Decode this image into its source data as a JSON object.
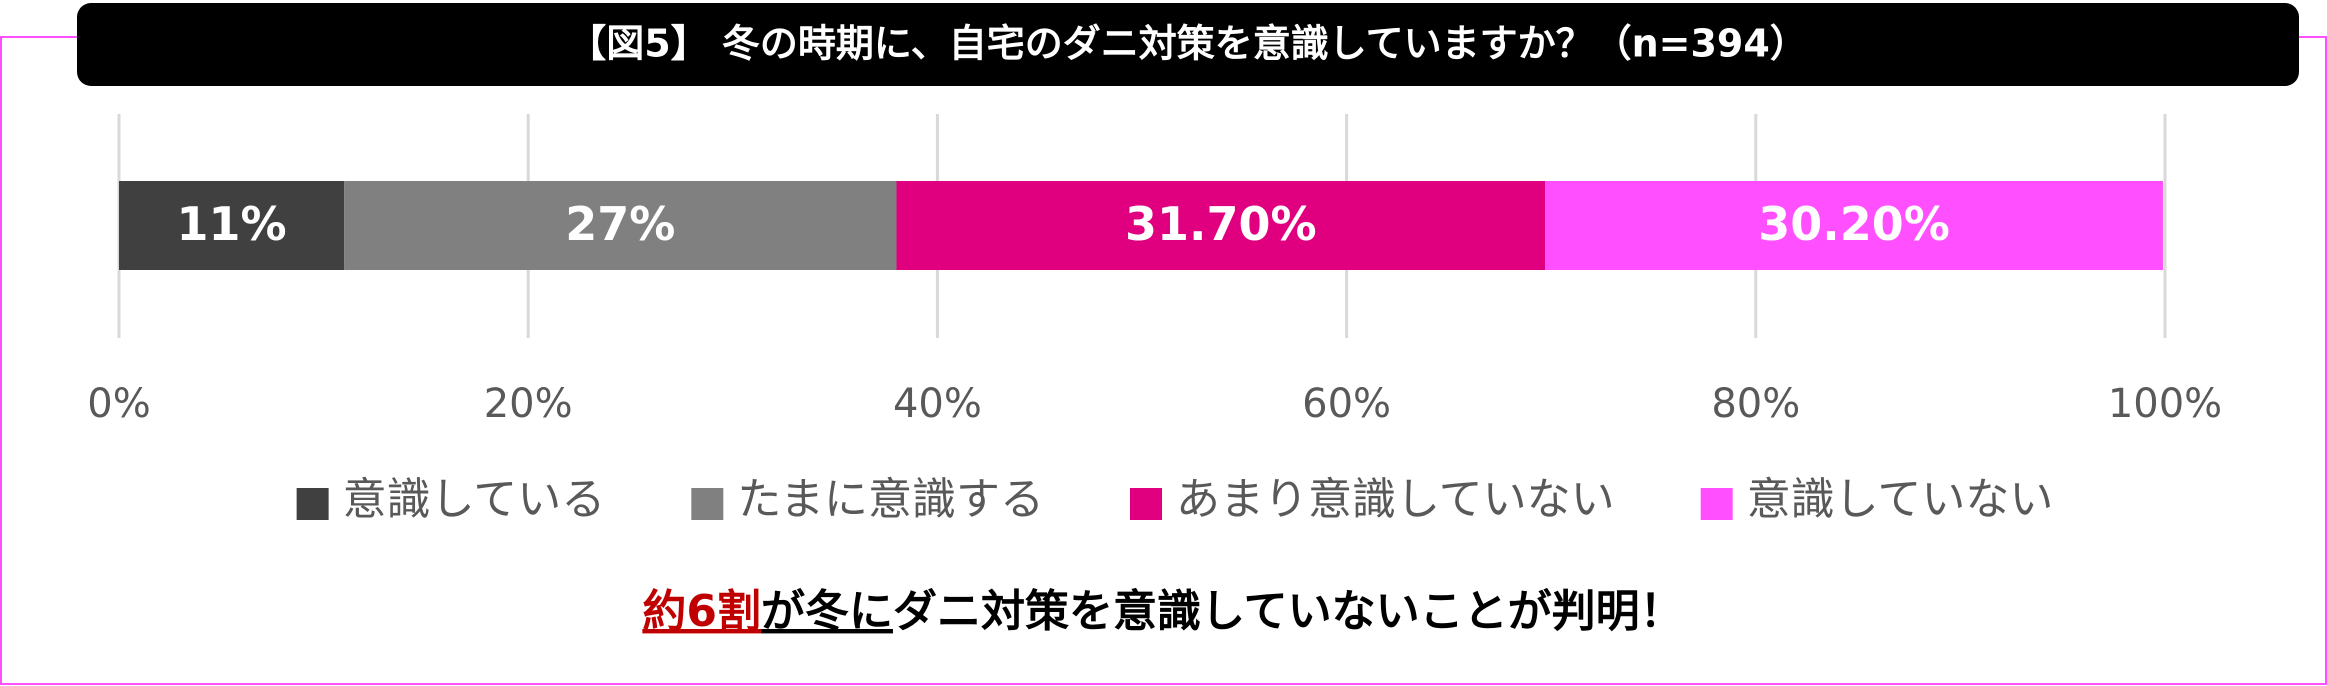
{
  "chart_data": {
    "type": "stacked_bar_100",
    "title": "【図5】 冬の時期に、自宅のダニ対策を意識していますか？（n=394）",
    "categories": [
      null
    ],
    "series": [
      {
        "name": "意識している",
        "color": "#404040",
        "values": [
          11
        ],
        "value_labels": [
          "11%"
        ]
      },
      {
        "name": "たまに意識する",
        "color": "#808080",
        "values": [
          27
        ],
        "value_labels": [
          "27%"
        ]
      },
      {
        "name": "あまり意識していない",
        "color": "#e0007f",
        "values": [
          31.7
        ],
        "value_labels": [
          "31.70%"
        ]
      },
      {
        "name": "意識していない",
        "color": "#ff4fff",
        "values": [
          30.2
        ],
        "value_labels": [
          "30.20%"
        ]
      }
    ],
    "xlim": [
      0,
      100
    ],
    "xticks": [
      {
        "value": 0,
        "label": "0%"
      },
      {
        "value": 20,
        "label": "20%"
      },
      {
        "value": 40,
        "label": "40%"
      },
      {
        "value": 60,
        "label": "60%"
      },
      {
        "value": 80,
        "label": "80%"
      },
      {
        "value": 100,
        "label": "100%"
      }
    ],
    "grid": true,
    "legend": "bottom",
    "annotation": [
      {
        "text": "約6割",
        "color": "#c00000",
        "underline": true
      },
      {
        "text": "が冬に",
        "color": "#000000",
        "underline": true
      },
      {
        "text": "ダニ対策を意識していないことが判明！",
        "color": "#000000",
        "underline": false
      }
    ]
  }
}
